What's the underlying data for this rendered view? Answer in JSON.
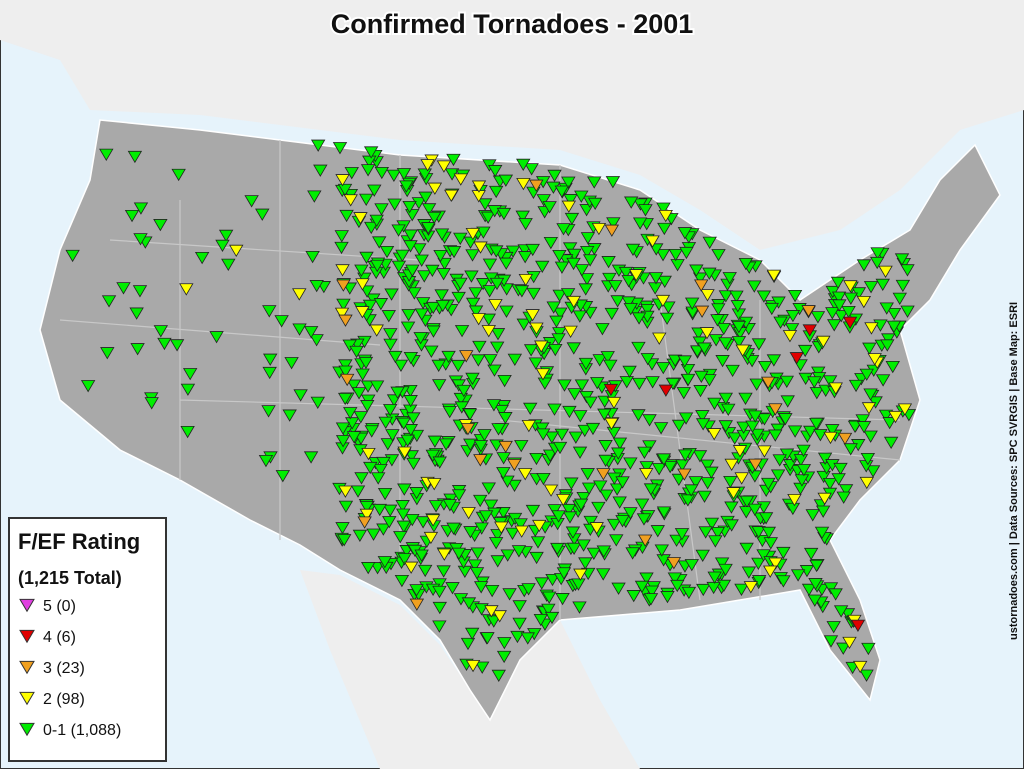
{
  "title": "Confirmed Tornadoes - 2001",
  "legend": {
    "title": "F/EF Rating",
    "subtitle": "(1,215 Total)",
    "items": [
      {
        "label": "5 (0)",
        "count": 0,
        "color": "#e040e0"
      },
      {
        "label": "4 (6)",
        "count": 6,
        "color": "#e00000"
      },
      {
        "label": "3 (23)",
        "count": 23,
        "color": "#f0a020"
      },
      {
        "label": "2 (98)",
        "count": 98,
        "color": "#ffff00"
      },
      {
        "label": "0-1 (1,088)",
        "count": 1088,
        "color": "#00ee00"
      }
    ]
  },
  "credit": "ustornadoes.com | Data Sources: SPC SVRGIS | Base Map: ESRI"
}
